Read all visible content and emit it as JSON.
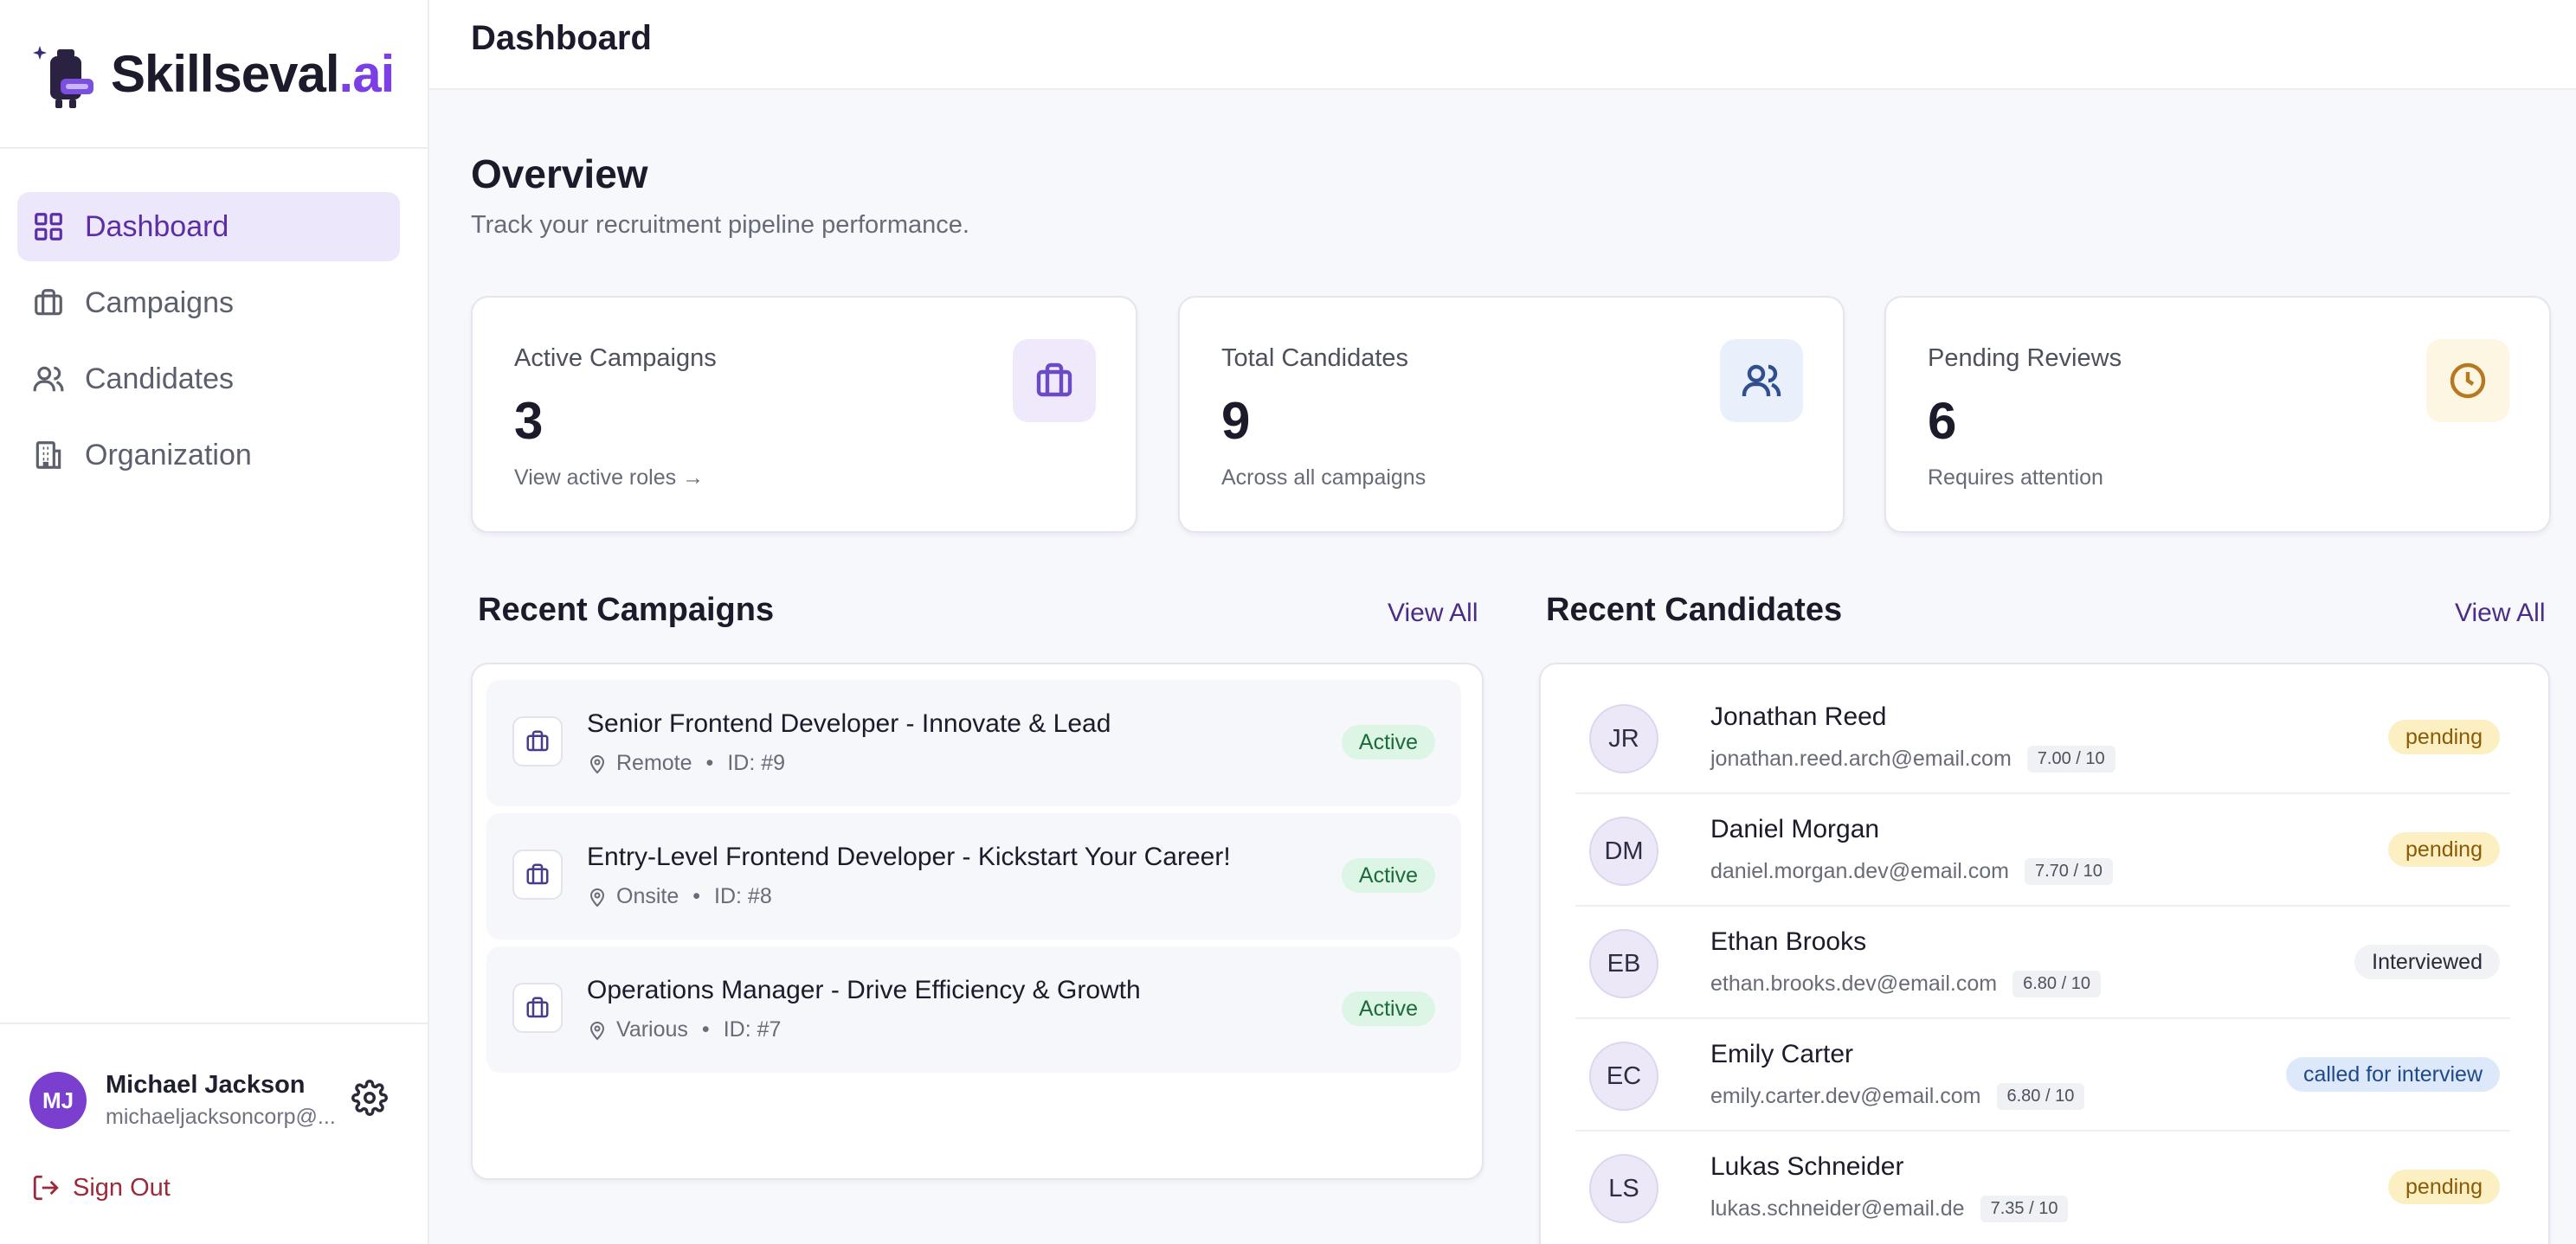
{
  "brand": {
    "name_main": "Skillseval",
    "name_dot": ".ai"
  },
  "sidebar": {
    "items": [
      {
        "label": "Dashboard",
        "icon": "grid-icon",
        "active": true
      },
      {
        "label": "Campaigns",
        "icon": "briefcase-icon",
        "active": false
      },
      {
        "label": "Candidates",
        "icon": "users-icon",
        "active": false
      },
      {
        "label": "Organization",
        "icon": "building-icon",
        "active": false
      }
    ],
    "user": {
      "initials": "MJ",
      "name": "Michael Jackson",
      "email": "michaeljacksoncorp@..."
    },
    "sign_out": "Sign Out"
  },
  "header": {
    "title": "Dashboard"
  },
  "overview": {
    "title": "Overview",
    "subtitle": "Track your recruitment pipeline performance."
  },
  "stats": [
    {
      "label": "Active Campaigns",
      "value": "3",
      "footer": "View active roles →",
      "icon": "briefcase-icon",
      "color": "#6a4bc4",
      "bg": "#efe9fb"
    },
    {
      "label": "Total Candidates",
      "value": "9",
      "footer": "Across all campaigns",
      "icon": "users-icon",
      "color": "#2f4f8f",
      "bg": "#eaf0fb"
    },
    {
      "label": "Pending Reviews",
      "value": "6",
      "footer": "Requires attention",
      "icon": "clock-icon",
      "color": "#b7791f",
      "bg": "#fdf6e3"
    }
  ],
  "recent_campaigns": {
    "title": "Recent Campaigns",
    "view_all": "View All",
    "items": [
      {
        "title": "Senior Frontend Developer - Innovate & Lead",
        "location": "Remote",
        "id": "ID: #9",
        "status": "Active"
      },
      {
        "title": "Entry-Level Frontend Developer - Kickstart Your Career!",
        "location": "Onsite",
        "id": "ID: #8",
        "status": "Active"
      },
      {
        "title": "Operations Manager - Drive Efficiency & Growth",
        "location": "Various",
        "id": "ID: #7",
        "status": "Active"
      }
    ]
  },
  "recent_candidates": {
    "title": "Recent Candidates",
    "view_all": "View All",
    "items": [
      {
        "initials": "JR",
        "name": "Jonathan Reed",
        "email": "jonathan.reed.arch@email.com",
        "score": "7.00 / 10",
        "status": "pending"
      },
      {
        "initials": "DM",
        "name": "Daniel Morgan",
        "email": "daniel.morgan.dev@email.com",
        "score": "7.70 / 10",
        "status": "pending"
      },
      {
        "initials": "EB",
        "name": "Ethan Brooks",
        "email": "ethan.brooks.dev@email.com",
        "score": "6.80 / 10",
        "status": "Interviewed"
      },
      {
        "initials": "EC",
        "name": "Emily Carter",
        "email": "emily.carter.dev@email.com",
        "score": "6.80 / 10",
        "status": "called for interview"
      },
      {
        "initials": "LS",
        "name": "Lukas Schneider",
        "email": "lukas.schneider@email.de",
        "score": "7.35 / 10",
        "status": "pending"
      }
    ]
  }
}
